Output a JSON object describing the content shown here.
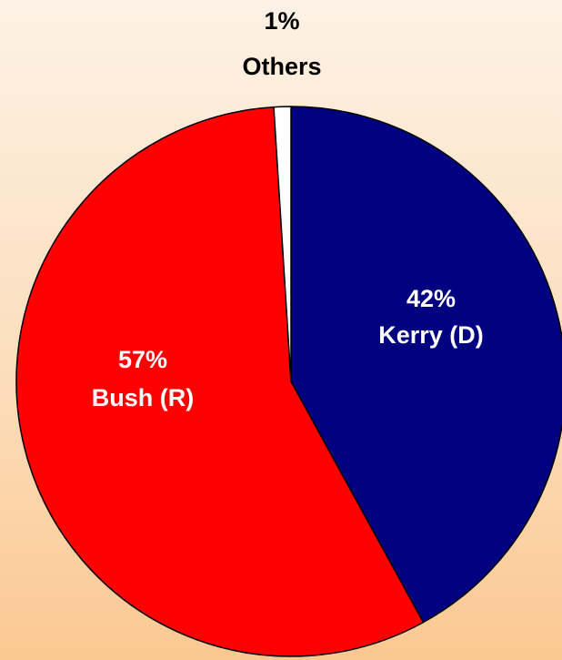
{
  "chart_data": {
    "type": "pie",
    "title": "",
    "start": "top",
    "direction": "clockwise",
    "slices": [
      {
        "label": "Kerry (D)",
        "value": 42,
        "value_label": "42%",
        "color": "#000080",
        "text_color": "#ffffff"
      },
      {
        "label": "Bush (R)",
        "value": 57,
        "value_label": "57%",
        "color": "#ff0000",
        "text_color": "#ffffff"
      },
      {
        "label": "Others",
        "value": 1,
        "value_label": "1%",
        "color": "#ffffff",
        "text_color": "#000000"
      }
    ]
  }
}
